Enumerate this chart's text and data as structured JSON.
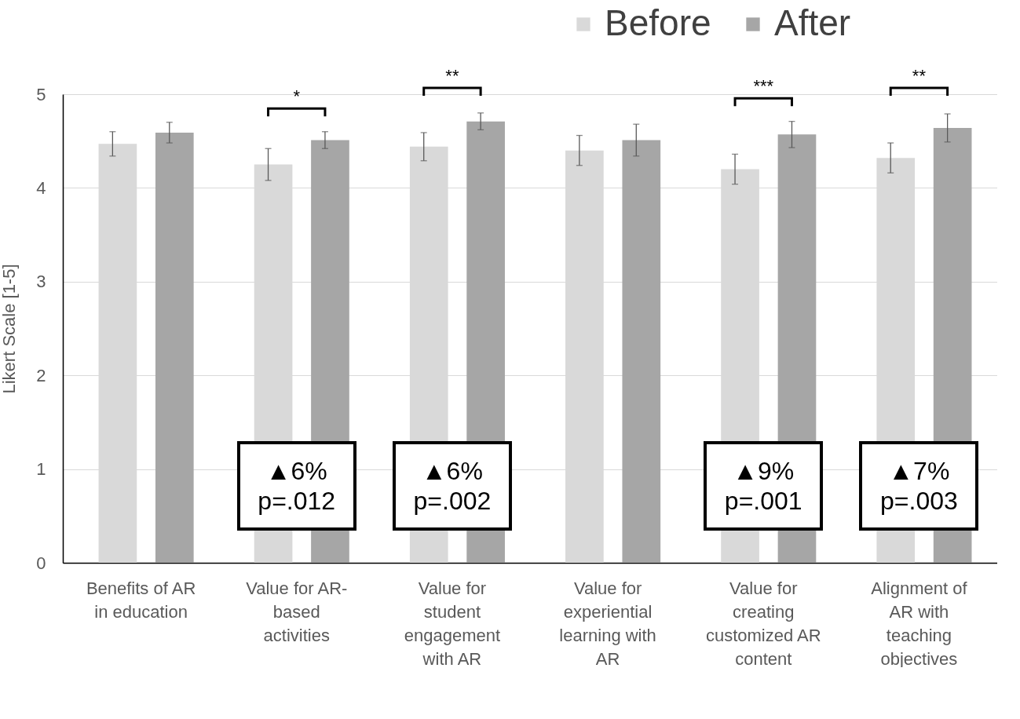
{
  "chart_data": {
    "type": "bar",
    "ylabel": "Likert Scale [1-5]",
    "categories": [
      "Benefits of AR in education",
      "Value for AR-based activities",
      "Value for student engagement with AR",
      "Value for experiential learning with AR",
      "Value for creating customized AR content",
      "Alignment of AR with teaching objectives"
    ],
    "series": [
      {
        "name": "Before",
        "color": "#d9d9d9",
        "values": [
          4.47,
          4.25,
          4.44,
          4.4,
          4.2,
          4.32
        ],
        "errors": [
          0.13,
          0.17,
          0.15,
          0.16,
          0.16,
          0.16
        ]
      },
      {
        "name": "After",
        "color": "#a6a6a6",
        "values": [
          4.59,
          4.51,
          4.71,
          4.51,
          4.57,
          4.64
        ],
        "errors": [
          0.11,
          0.09,
          0.09,
          0.17,
          0.14,
          0.15
        ]
      }
    ],
    "ylim": [
      0,
      5
    ],
    "yticks": [
      0,
      1,
      2,
      3,
      4,
      5
    ],
    "grid": "y",
    "legend": "top right",
    "annotations": [
      "*",
      "**",
      "***",
      "**",
      "▲6%\np=.012",
      "▲6%\np=.002",
      "▲9%\np=.001",
      "▲7%\np=.003"
    ]
  }
}
